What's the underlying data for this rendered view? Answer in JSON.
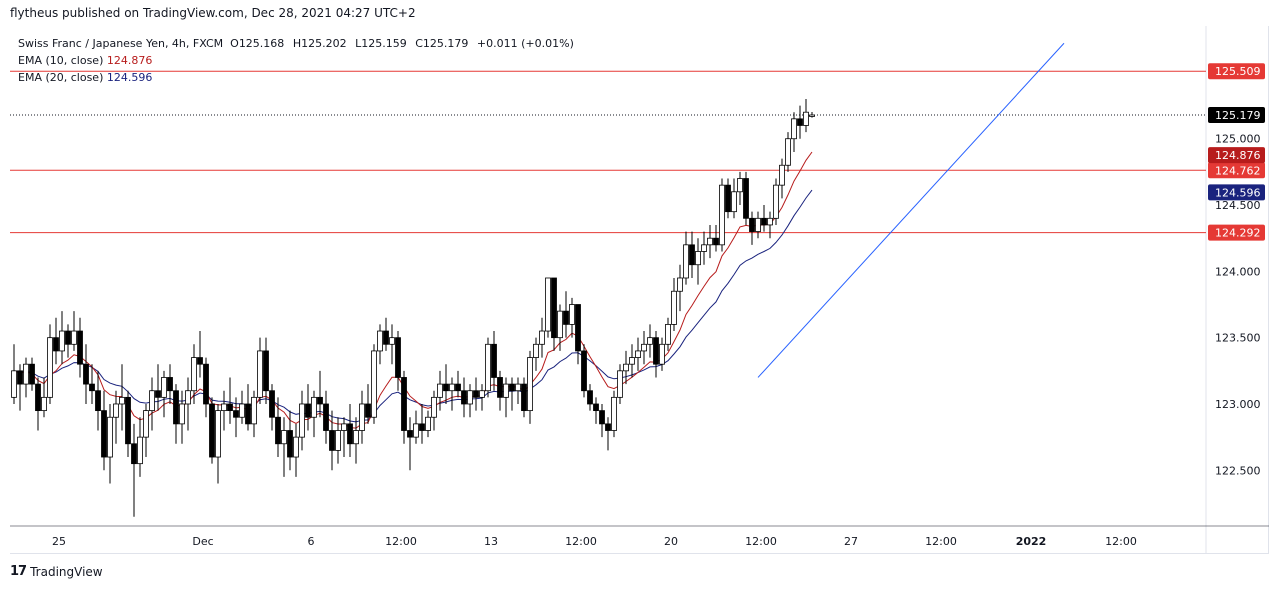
{
  "header": {
    "published_text": "flytheus published on TradingView.com, Dec 28, 2021 04:27 UTC+2"
  },
  "legend": {
    "symbol": "Swiss Franc / Japanese Yen, 4h, FXCM",
    "o_label": "O",
    "o_value": "125.168",
    "h_label": "H",
    "h_value": "125.202",
    "l_label": "L",
    "l_value": "125.159",
    "c_label": "C",
    "c_value": "125.179",
    "change": "+0.011 (+0.01%)",
    "ema10_label": "EMA (10, close)",
    "ema10_value": "124.876",
    "ema20_label": "EMA (20, close)",
    "ema20_value": "124.596"
  },
  "footer": {
    "logo_text": "17",
    "brand": "TradingView"
  },
  "colors": {
    "up_body": "#ffffff",
    "down_body": "#000000",
    "wick": "#000000",
    "ema10": "#b71c1c",
    "ema20": "#1a237e",
    "trendline": "#2962ff",
    "hline": "#e53935",
    "last_price": "#000000",
    "grid_bg": "#ffffff"
  },
  "chart_data": {
    "type": "candlestick",
    "title": "Swiss Franc / Japanese Yen, 4h, FXCM",
    "ylim": [
      122.08,
      125.85
    ],
    "y_ticks": [
      "122.500",
      "123.000",
      "123.500",
      "124.000",
      "124.500",
      "125.000"
    ],
    "x_ticks": [
      "25",
      "Dec",
      "6",
      "12:00",
      "13",
      "12:00",
      "20",
      "12:00",
      "27",
      "12:00",
      "2022",
      "12:00"
    ],
    "horizontal_levels": [
      {
        "value": 125.509,
        "label": "125.509"
      },
      {
        "value": 124.762,
        "label": "124.762"
      },
      {
        "value": 124.292,
        "label": "124.292"
      }
    ],
    "last_price": {
      "value": 125.179,
      "label": "125.179"
    },
    "ema10_tag": {
      "value": 124.876,
      "label": "124.876"
    },
    "ema20_tag": {
      "value": 124.596,
      "label": "124.596"
    },
    "ohlc": [
      [
        123.05,
        123.45,
        123.0,
        123.25
      ],
      [
        123.25,
        123.3,
        122.95,
        123.15
      ],
      [
        123.15,
        123.35,
        123.05,
        123.3
      ],
      [
        123.3,
        123.35,
        123.1,
        123.15
      ],
      [
        123.15,
        123.2,
        122.8,
        122.95
      ],
      [
        122.95,
        123.2,
        122.9,
        123.05
      ],
      [
        123.05,
        123.6,
        123.0,
        123.5
      ],
      [
        123.5,
        123.65,
        123.3,
        123.4
      ],
      [
        123.4,
        123.7,
        123.3,
        123.55
      ],
      [
        123.55,
        123.6,
        123.35,
        123.45
      ],
      [
        123.45,
        123.7,
        123.4,
        123.55
      ],
      [
        123.55,
        123.65,
        123.2,
        123.3
      ],
      [
        123.3,
        123.45,
        123.0,
        123.15
      ],
      [
        123.15,
        123.3,
        123.0,
        123.1
      ],
      [
        123.1,
        123.25,
        122.8,
        122.95
      ],
      [
        122.95,
        123.1,
        122.5,
        122.6
      ],
      [
        122.6,
        123.0,
        122.4,
        122.9
      ],
      [
        122.9,
        123.1,
        122.7,
        123.0
      ],
      [
        123.0,
        123.3,
        122.8,
        123.05
      ],
      [
        123.05,
        123.1,
        122.6,
        122.7
      ],
      [
        122.7,
        122.85,
        122.15,
        122.55
      ],
      [
        122.55,
        122.9,
        122.45,
        122.75
      ],
      [
        122.75,
        123.0,
        122.6,
        122.95
      ],
      [
        122.95,
        123.2,
        122.8,
        123.1
      ],
      [
        123.1,
        123.3,
        122.95,
        123.05
      ],
      [
        123.05,
        123.25,
        122.9,
        123.2
      ],
      [
        123.2,
        123.3,
        123.0,
        123.1
      ],
      [
        123.1,
        123.15,
        122.7,
        122.85
      ],
      [
        122.85,
        123.1,
        122.7,
        123.0
      ],
      [
        123.0,
        123.2,
        122.8,
        123.1
      ],
      [
        123.1,
        123.45,
        123.0,
        123.35
      ],
      [
        123.35,
        123.55,
        123.2,
        123.3
      ],
      [
        123.3,
        123.35,
        122.9,
        123.0
      ],
      [
        123.0,
        123.05,
        122.55,
        122.6
      ],
      [
        122.6,
        123.0,
        122.4,
        122.95
      ],
      [
        122.95,
        123.1,
        122.8,
        123.0
      ],
      [
        123.0,
        123.2,
        122.85,
        122.95
      ],
      [
        122.95,
        123.05,
        122.75,
        122.9
      ],
      [
        122.9,
        123.1,
        122.85,
        123.0
      ],
      [
        123.0,
        123.15,
        122.8,
        122.85
      ],
      [
        122.85,
        123.1,
        122.75,
        123.05
      ],
      [
        123.05,
        123.5,
        123.0,
        123.4
      ],
      [
        123.4,
        123.5,
        123.0,
        123.1
      ],
      [
        123.1,
        123.15,
        122.8,
        122.9
      ],
      [
        122.9,
        123.05,
        122.6,
        122.7
      ],
      [
        122.7,
        122.9,
        122.45,
        122.8
      ],
      [
        122.8,
        122.95,
        122.5,
        122.6
      ],
      [
        122.6,
        122.85,
        122.45,
        122.75
      ],
      [
        122.75,
        123.1,
        122.65,
        123.0
      ],
      [
        123.0,
        123.15,
        122.8,
        122.9
      ],
      [
        122.9,
        123.1,
        122.75,
        123.05
      ],
      [
        123.05,
        123.25,
        122.9,
        123.0
      ],
      [
        123.0,
        123.1,
        122.7,
        122.8
      ],
      [
        122.8,
        122.95,
        122.5,
        122.65
      ],
      [
        122.65,
        122.9,
        122.55,
        122.8
      ],
      [
        122.8,
        122.9,
        122.6,
        122.85
      ],
      [
        122.85,
        123.0,
        122.6,
        122.7
      ],
      [
        122.7,
        122.9,
        122.55,
        122.8
      ],
      [
        122.8,
        123.1,
        122.7,
        123.0
      ],
      [
        123.0,
        123.15,
        122.85,
        122.9
      ],
      [
        122.9,
        123.45,
        122.85,
        123.4
      ],
      [
        123.4,
        123.6,
        123.3,
        123.55
      ],
      [
        123.55,
        123.65,
        123.4,
        123.45
      ],
      [
        123.45,
        123.6,
        123.3,
        123.5
      ],
      [
        123.5,
        123.55,
        123.1,
        123.2
      ],
      [
        123.2,
        123.25,
        122.7,
        122.8
      ],
      [
        122.8,
        122.9,
        122.5,
        122.75
      ],
      [
        122.75,
        122.95,
        122.7,
        122.85
      ],
      [
        122.85,
        123.0,
        122.7,
        122.8
      ],
      [
        122.8,
        122.95,
        122.75,
        122.9
      ],
      [
        122.9,
        123.1,
        122.8,
        123.05
      ],
      [
        123.05,
        123.25,
        122.95,
        123.15
      ],
      [
        123.15,
        123.3,
        123.0,
        123.1
      ],
      [
        123.1,
        123.2,
        122.95,
        123.15
      ],
      [
        123.15,
        123.25,
        123.05,
        123.1
      ],
      [
        123.1,
        123.2,
        122.9,
        123.0
      ],
      [
        123.0,
        123.15,
        122.9,
        123.1
      ],
      [
        123.1,
        123.2,
        122.95,
        123.05
      ],
      [
        123.05,
        123.15,
        122.95,
        123.1
      ],
      [
        123.1,
        123.5,
        123.05,
        123.45
      ],
      [
        123.45,
        123.55,
        123.1,
        123.2
      ],
      [
        123.2,
        123.25,
        122.95,
        123.05
      ],
      [
        123.05,
        123.2,
        122.9,
        123.15
      ],
      [
        123.15,
        123.2,
        122.95,
        123.1
      ],
      [
        123.1,
        123.2,
        123.0,
        123.15
      ],
      [
        123.15,
        123.2,
        122.9,
        122.95
      ],
      [
        122.95,
        123.4,
        122.85,
        123.35
      ],
      [
        123.35,
        123.5,
        123.25,
        123.45
      ],
      [
        123.45,
        123.65,
        123.35,
        123.55
      ],
      [
        123.55,
        123.95,
        123.5,
        123.95
      ],
      [
        123.95,
        123.95,
        123.4,
        123.5
      ],
      [
        123.5,
        123.75,
        123.4,
        123.7
      ],
      [
        123.7,
        123.85,
        123.5,
        123.6
      ],
      [
        123.6,
        123.8,
        123.5,
        123.75
      ],
      [
        123.75,
        123.75,
        123.3,
        123.4
      ],
      [
        123.4,
        123.45,
        123.05,
        123.1
      ],
      [
        123.1,
        123.15,
        122.95,
        123.0
      ],
      [
        123.0,
        123.05,
        122.85,
        122.95
      ],
      [
        122.95,
        123.0,
        122.75,
        122.85
      ],
      [
        122.85,
        122.9,
        122.65,
        122.8
      ],
      [
        122.8,
        123.1,
        122.75,
        123.05
      ],
      [
        123.05,
        123.3,
        123.0,
        123.25
      ],
      [
        123.25,
        123.4,
        123.15,
        123.3
      ],
      [
        123.3,
        123.45,
        123.2,
        123.35
      ],
      [
        123.35,
        123.5,
        123.25,
        123.4
      ],
      [
        123.4,
        123.55,
        123.3,
        123.45
      ],
      [
        123.45,
        123.6,
        123.35,
        123.5
      ],
      [
        123.5,
        123.55,
        123.2,
        123.3
      ],
      [
        123.3,
        123.5,
        123.25,
        123.45
      ],
      [
        123.45,
        123.65,
        123.4,
        123.6
      ],
      [
        123.6,
        123.95,
        123.55,
        123.85
      ],
      [
        123.85,
        124.05,
        123.7,
        123.95
      ],
      [
        123.95,
        124.3,
        123.9,
        124.2
      ],
      [
        124.2,
        124.3,
        123.95,
        124.05
      ],
      [
        124.05,
        124.25,
        123.9,
        124.15
      ],
      [
        124.15,
        124.3,
        124.05,
        124.2
      ],
      [
        124.2,
        124.35,
        124.1,
        124.25
      ],
      [
        124.25,
        124.35,
        124.15,
        124.2
      ],
      [
        124.2,
        124.7,
        124.15,
        124.65
      ],
      [
        124.65,
        124.7,
        124.4,
        124.45
      ],
      [
        124.45,
        124.7,
        124.4,
        124.6
      ],
      [
        124.6,
        124.75,
        124.5,
        124.7
      ],
      [
        124.7,
        124.75,
        124.35,
        124.4
      ],
      [
        124.4,
        124.45,
        124.2,
        124.3
      ],
      [
        124.3,
        124.45,
        124.25,
        124.4
      ],
      [
        124.4,
        124.5,
        124.3,
        124.35
      ],
      [
        124.35,
        124.45,
        124.25,
        124.4
      ],
      [
        124.4,
        124.7,
        124.35,
        124.65
      ],
      [
        124.65,
        124.85,
        124.55,
        124.8
      ],
      [
        124.8,
        125.05,
        124.75,
        125.0
      ],
      [
        125.0,
        125.2,
        124.9,
        125.15
      ],
      [
        125.15,
        125.25,
        125.0,
        125.1
      ],
      [
        125.1,
        125.3,
        125.05,
        125.2
      ],
      [
        125.168,
        125.202,
        125.159,
        125.179
      ]
    ],
    "trendline": [
      {
        "bar": 124,
        "price": 123.2
      },
      {
        "bar": 175,
        "price": 125.72
      }
    ]
  }
}
